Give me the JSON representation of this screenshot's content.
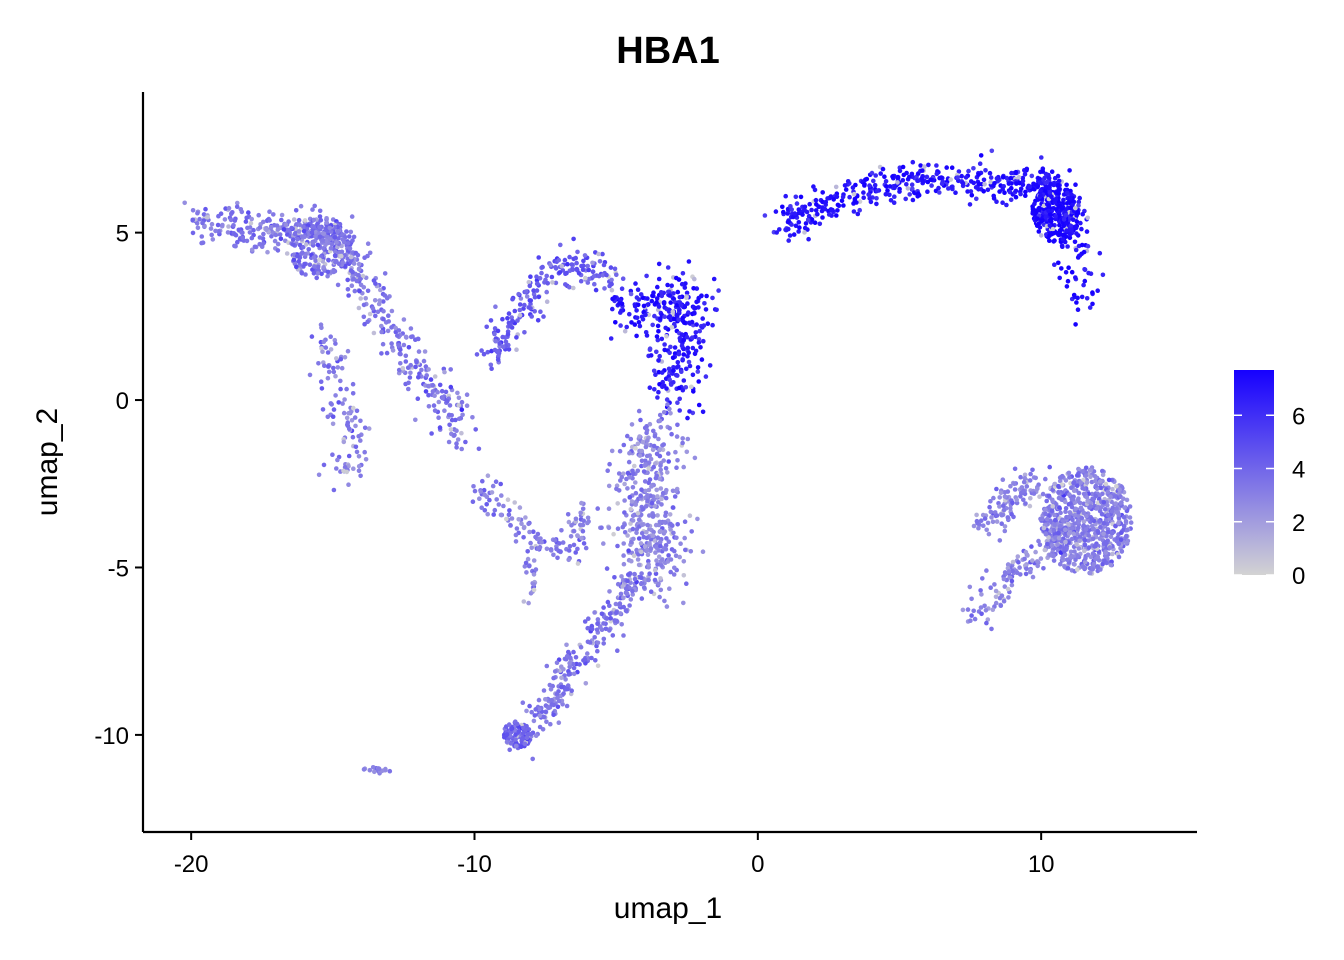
{
  "chart_data": {
    "type": "scatter",
    "title": "HBA1",
    "xlabel": "umap_1",
    "ylabel": "umap_2",
    "xlim": [
      -21.7,
      15.5
    ],
    "ylim": [
      -12.9,
      9.2
    ],
    "x_ticks": [
      -20,
      -10,
      0,
      10
    ],
    "x_tick_labels": [
      "-20",
      "-10",
      "0",
      "10"
    ],
    "y_ticks": [
      -10,
      -5,
      0,
      5
    ],
    "y_tick_labels": [
      "-10",
      "-5",
      "0",
      "5"
    ],
    "grid": false,
    "color_scale": {
      "low_color": "#d3d3d3",
      "high_color": "#1600ff",
      "min": 0,
      "max": 7.7,
      "ticks": [
        0,
        2,
        4,
        6
      ],
      "tick_labels": [
        "0",
        "2",
        "4",
        "6"
      ],
      "legend_position": "right"
    },
    "clusters": [
      {
        "id": "top-right-arc",
        "expression": 7.0,
        "ridge": [
          [
            1.0,
            5.2
          ],
          [
            2.5,
            5.8
          ],
          [
            4.5,
            6.5
          ],
          [
            6.5,
            6.6
          ],
          [
            8.5,
            6.4
          ],
          [
            10.2,
            6.5
          ],
          [
            11.0,
            5.5
          ],
          [
            11.4,
            3.0
          ]
        ],
        "spread": 0.35,
        "n": 560
      },
      {
        "id": "top-right-blob",
        "expression": 7.5,
        "center": [
          10.5,
          5.6
        ],
        "radius": [
          0.8,
          0.9
        ],
        "n": 240
      },
      {
        "id": "upper-left-fan",
        "expression": 3.5,
        "ridge": [
          [
            -19.8,
            5.4
          ],
          [
            -18.0,
            5.0
          ],
          [
            -16.5,
            5.1
          ],
          [
            -15.2,
            5.2
          ],
          [
            -14.6,
            4.5
          ],
          [
            -14.0,
            3.3
          ],
          [
            -12.5,
            1.5
          ],
          [
            -11.2,
            0.2
          ],
          [
            -10.5,
            -1.1
          ]
        ],
        "spread": 0.35,
        "n": 560
      },
      {
        "id": "upper-left-fan-fill",
        "expression": 3.5,
        "center": [
          -15.5,
          4.5
        ],
        "radius": [
          1.0,
          0.9
        ],
        "n": 180
      },
      {
        "id": "left-branch",
        "expression": 3.2,
        "ridge": [
          [
            -15.4,
            2.0
          ],
          [
            -15.0,
            0.8
          ],
          [
            -14.5,
            -0.5
          ],
          [
            -14.2,
            -1.5
          ],
          [
            -14.8,
            -2.4
          ]
        ],
        "spread": 0.3,
        "n": 110
      },
      {
        "id": "mid-arc",
        "expression": 4.5,
        "ridge": [
          [
            -9.5,
            1.2
          ],
          [
            -8.5,
            2.5
          ],
          [
            -7.5,
            3.8
          ],
          [
            -6.2,
            4.1
          ],
          [
            -5.2,
            3.5
          ]
        ],
        "spread": 0.3,
        "n": 210
      },
      {
        "id": "mid-blob",
        "expression": 6.8,
        "ridge": [
          [
            -4.8,
            2.6
          ],
          [
            -3.5,
            2.8
          ],
          [
            -2.4,
            3.0
          ],
          [
            -2.8,
            1.5
          ],
          [
            -3.0,
            0.0
          ]
        ],
        "spread": 0.5,
        "n": 330
      },
      {
        "id": "lower-middle-column",
        "expression": 3.0,
        "ridge": [
          [
            -3.6,
            -0.8
          ],
          [
            -4.0,
            -2.5
          ],
          [
            -3.8,
            -4.0
          ],
          [
            -3.5,
            -5.2
          ]
        ],
        "spread": 0.6,
        "n": 430
      },
      {
        "id": "lower-diagonal",
        "expression": 3.4,
        "ridge": [
          [
            -4.2,
            -5.3
          ],
          [
            -5.5,
            -6.8
          ],
          [
            -7.0,
            -8.5
          ],
          [
            -8.3,
            -10.2
          ]
        ],
        "spread": 0.3,
        "n": 270
      },
      {
        "id": "bottom-lobe",
        "expression": 4.2,
        "center": [
          -8.5,
          -10.0
        ],
        "radius": [
          0.5,
          0.4
        ],
        "n": 90
      },
      {
        "id": "middle-thread",
        "expression": 3.2,
        "ridge": [
          [
            -10.0,
            -2.5
          ],
          [
            -8.8,
            -3.5
          ],
          [
            -7.5,
            -4.3
          ],
          [
            -6.5,
            -4.6
          ],
          [
            -6.2,
            -3.2
          ]
        ],
        "spread": 0.25,
        "n": 130
      },
      {
        "id": "middle-thread-drop",
        "expression": 3.2,
        "ridge": [
          [
            -8.0,
            -4.5
          ],
          [
            -8.0,
            -6.0
          ]
        ],
        "spread": 0.15,
        "n": 25
      },
      {
        "id": "bottom-left-tiny",
        "expression": 3.2,
        "ridge": [
          [
            -14.0,
            -10.9
          ],
          [
            -13.0,
            -11.1
          ]
        ],
        "spread": 0.08,
        "n": 16
      },
      {
        "id": "right-lower-blob",
        "expression": 3.2,
        "center": [
          11.6,
          -3.6
        ],
        "radius": [
          1.6,
          1.6
        ],
        "n": 720
      },
      {
        "id": "right-lower-arm",
        "expression": 3.0,
        "ridge": [
          [
            7.8,
            -6.4
          ],
          [
            8.5,
            -5.8
          ],
          [
            9.2,
            -5.0
          ],
          [
            10.5,
            -4.3
          ],
          [
            11.0,
            -3.8
          ]
        ],
        "spread": 0.3,
        "n": 150
      },
      {
        "id": "right-lower-left",
        "expression": 3.0,
        "ridge": [
          [
            8.0,
            -3.8
          ],
          [
            9.0,
            -3.0
          ],
          [
            10.0,
            -2.4
          ]
        ],
        "spread": 0.3,
        "n": 110
      }
    ]
  }
}
